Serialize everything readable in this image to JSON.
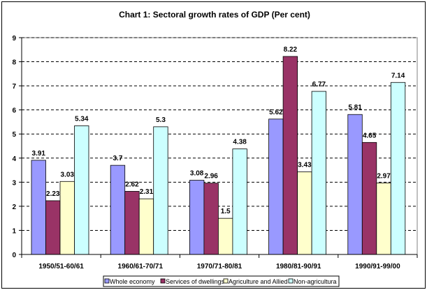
{
  "chart_data": {
    "type": "bar",
    "title": "Chart 1: Sectoral growth rates of GDP (Per cent)",
    "xlabel": "",
    "ylabel": "",
    "ylim": [
      0,
      9
    ],
    "yticks": [
      "0",
      "1",
      "2",
      "3",
      "4",
      "5",
      "6",
      "7",
      "8",
      "9"
    ],
    "grid": "horizontal dashed",
    "legend_position": "bottom",
    "categories": [
      "1950/51-60/61",
      "1960/61-70/71",
      "1970/71-80/81",
      "1980/81-90/91",
      "1990/91-99/00"
    ],
    "series": [
      {
        "name": "Whole economy",
        "color": "#9999ff",
        "values": [
          3.91,
          3.7,
          3.08,
          5.62,
          5.81
        ],
        "labels": [
          "3.91",
          "3.7",
          "3.08",
          "5.62",
          "5.81"
        ]
      },
      {
        "name": "Services of dwellings",
        "color": "#993366",
        "values": [
          2.23,
          2.62,
          2.96,
          8.22,
          4.65
        ],
        "labels": [
          "2.23",
          "2.62",
          "2.96",
          "8.22",
          "4.65"
        ]
      },
      {
        "name": "Agriculture and Allied",
        "color": "#ffffcc",
        "values": [
          3.03,
          2.31,
          1.5,
          3.43,
          2.97
        ],
        "labels": [
          "3.03",
          "2.31",
          "1.5",
          "3.43",
          "2.97"
        ]
      },
      {
        "name": "Non-agricultural",
        "color": "#ccffff",
        "values": [
          5.34,
          5.3,
          4.38,
          6.77,
          7.14
        ],
        "labels": [
          "5.34",
          "5.3",
          "4.38",
          "6.77",
          "7.14"
        ]
      }
    ],
    "legend_labels": [
      "Whole economy",
      "Services of dwellings",
      "Agriculture and Allied",
      "Non-agricultura"
    ]
  }
}
